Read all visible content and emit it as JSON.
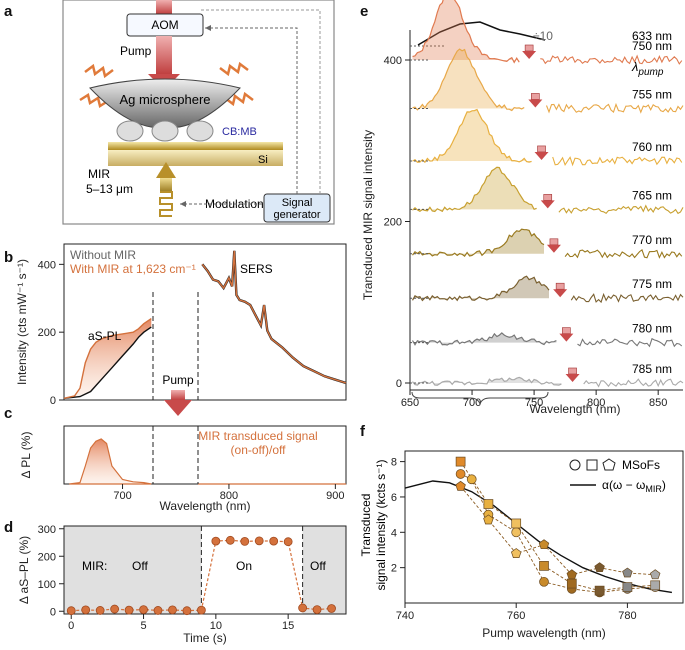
{
  "panels": {
    "a": "a",
    "b": "b",
    "c": "c",
    "d": "d",
    "e": "e",
    "f": "f"
  },
  "panel_a": {
    "aom": "AOM",
    "pump": "Pump",
    "sphere": "Ag microsphere",
    "molecule": "CB:MB",
    "substrate": "Si",
    "mir_line1": "MIR",
    "mir_line2": "5–13 μm",
    "modulation": "Modulation",
    "signal_gen_line1": "Signal",
    "signal_gen_line2": "generator",
    "colors": {
      "pump_arrow": "#c84a4a",
      "mir_arrow": "#b8902a",
      "molecule_label": "#2a2aa0",
      "panel_border": "#888888"
    }
  },
  "chart_data": [
    {
      "panel": "b",
      "type": "line",
      "xlabel": "Wavelength (nm)",
      "ylabel": "Intensity (cts mW⁻¹ s⁻¹)",
      "xlim": [
        645,
        910
      ],
      "ylim": [
        0,
        460
      ],
      "xticks": [
        700,
        800,
        900
      ],
      "yticks": [
        0,
        200,
        400
      ],
      "legend": [
        "Without MIR",
        "With MIR at 1,623 cm⁻¹"
      ],
      "annotations": [
        "aS-PL",
        "SERS",
        "Pump"
      ],
      "series": [
        {
          "name": "Without MIR",
          "color": "#111111",
          "x": [
            645,
            660,
            670,
            680,
            690,
            700,
            710,
            715,
            720,
            727
          ],
          "y": [
            5,
            10,
            25,
            60,
            95,
            130,
            165,
            185,
            200,
            215
          ]
        },
        {
          "name": "With MIR at 1,623 cm⁻¹",
          "color": "#d4713c",
          "x": [
            645,
            655,
            660,
            665,
            670,
            675,
            680,
            690,
            700,
            710,
            715,
            720,
            727
          ],
          "y": [
            5,
            12,
            35,
            110,
            150,
            170,
            180,
            190,
            195,
            200,
            210,
            225,
            240
          ]
        },
        {
          "name": "SERS",
          "color": "#d4713c",
          "x": [
            775,
            780,
            785,
            790,
            795,
            800,
            803,
            805,
            807,
            810,
            815,
            820,
            825,
            830,
            833,
            836,
            840,
            850,
            860,
            870,
            880,
            890,
            900,
            910
          ],
          "y": [
            400,
            380,
            355,
            350,
            330,
            360,
            335,
            440,
            310,
            295,
            290,
            280,
            250,
            220,
            280,
            205,
            180,
            155,
            125,
            100,
            85,
            70,
            60,
            50
          ]
        }
      ]
    },
    {
      "panel": "c",
      "type": "area",
      "xlabel": "Wavelength (nm)",
      "ylabel": "Δ PL (%)",
      "xlim": [
        645,
        910
      ],
      "xticks": [
        700,
        800,
        900
      ],
      "annotation_line1": "MIR transduced signal",
      "annotation_line2": "(on-off)/off",
      "x": [
        650,
        660,
        665,
        670,
        675,
        680,
        685,
        690,
        700,
        710,
        720,
        727
      ],
      "y": [
        0,
        3,
        40,
        80,
        95,
        100,
        90,
        40,
        10,
        5,
        3,
        0
      ]
    },
    {
      "panel": "d",
      "type": "line",
      "xlabel": "Time (s)",
      "ylabel": "Δ aS–PL (%)",
      "xlim": [
        -0.5,
        19
      ],
      "ylim": [
        -10,
        310
      ],
      "xticks": [
        0,
        5,
        10,
        15
      ],
      "yticks": [
        0,
        100,
        200,
        300
      ],
      "labels": {
        "mir": "MIR:",
        "off1": "Off",
        "on": "On",
        "off2": "Off"
      },
      "off_intervals": [
        [
          -0.5,
          9
        ],
        [
          16,
          19
        ]
      ],
      "color": "#d4713c",
      "x": [
        0,
        1,
        2,
        3,
        4,
        5,
        6,
        7,
        8,
        9,
        10,
        11,
        12,
        13,
        14,
        15,
        16,
        17,
        18
      ],
      "y": [
        2,
        5,
        3,
        8,
        4,
        6,
        3,
        5,
        2,
        4,
        255,
        258,
        254,
        256,
        255,
        253,
        12,
        6,
        10
      ]
    },
    {
      "panel": "e",
      "type": "line",
      "xlabel": "Wavelength (nm)",
      "ylabel": "Transduced MIR signal intensity",
      "xlim": [
        650,
        870
      ],
      "xticks": [
        650,
        700,
        750,
        800,
        850
      ],
      "yticks": [
        0,
        200,
        400
      ],
      "legend_title": "λ",
      "legend_title_sub": "pump",
      "reference": {
        "label": "633 nm",
        "scale_note": "÷10"
      },
      "series": [
        {
          "name": "750 nm",
          "pump": 750,
          "offset": 400,
          "peak_x": 680,
          "peak_y": 85,
          "color": "#e07a50"
        },
        {
          "name": "755 nm",
          "pump": 755,
          "offset": 340,
          "peak_x": 690,
          "peak_y": 75,
          "color": "#e8a848"
        },
        {
          "name": "760 nm",
          "pump": 760,
          "offset": 275,
          "peak_x": 700,
          "peak_y": 65,
          "color": "#e8b040"
        },
        {
          "name": "765 nm",
          "pump": 765,
          "offset": 215,
          "peak_x": 720,
          "peak_y": 50,
          "color": "#c8a030"
        },
        {
          "name": "770 nm",
          "pump": 770,
          "offset": 160,
          "peak_x": 740,
          "peak_y": 30,
          "color": "#9a7a20"
        },
        {
          "name": "775 nm",
          "pump": 775,
          "offset": 105,
          "peak_x": 745,
          "peak_y": 25,
          "color": "#7a6030"
        },
        {
          "name": "780 nm",
          "pump": 780,
          "offset": 50,
          "peak_x": 725,
          "peak_y": 10,
          "color": "#777777"
        },
        {
          "name": "785 nm",
          "pump": 785,
          "offset": 0,
          "peak_x": 730,
          "peak_y": 5,
          "color": "#aaaaaa"
        }
      ]
    },
    {
      "panel": "f",
      "type": "scatter",
      "xlabel": "Pump wavelength (nm)",
      "ylabel_line1": "Transduced",
      "ylabel_line2": "signal intensity (kcts s⁻¹)",
      "xlim": [
        740,
        790
      ],
      "ylim": [
        0,
        8.6
      ],
      "xticks": [
        740,
        760,
        780
      ],
      "yticks": [
        2,
        4,
        6,
        8
      ],
      "legend": {
        "markers": "MSoFs",
        "curve": "α(ω − ω",
        "curve_sub": "MIR",
        "curve_end": ")"
      },
      "curve": {
        "x": [
          740,
          745,
          748,
          752,
          756,
          760,
          764,
          768,
          772,
          776,
          780,
          784,
          788
        ],
        "y": [
          6.5,
          6.9,
          6.8,
          6.3,
          5.5,
          4.5,
          3.5,
          2.7,
          2.0,
          1.5,
          1.1,
          0.8,
          0.6
        ]
      },
      "series": [
        {
          "name": "circle",
          "x": [
            750,
            752,
            755,
            760,
            765,
            770,
            775,
            780,
            785
          ],
          "y": [
            7.3,
            7.0,
            5.0,
            4.0,
            1.2,
            0.8,
            0.6,
            0.8,
            0.9
          ]
        },
        {
          "name": "square",
          "x": [
            750,
            755,
            760,
            765,
            770,
            775,
            780,
            785
          ],
          "y": [
            8.0,
            5.6,
            4.5,
            2.1,
            1.1,
            0.7,
            0.9,
            1.0
          ]
        },
        {
          "name": "pentagon",
          "x": [
            750,
            755,
            760,
            765,
            770,
            775,
            780,
            785
          ],
          "y": [
            6.6,
            4.7,
            2.8,
            3.3,
            1.6,
            2.0,
            1.7,
            1.6
          ]
        }
      ],
      "colors": [
        "#e08a2a",
        "#e8b040",
        "#f0c060",
        "#c88a2a",
        "#a06a20",
        "#7a5a30",
        "#888888",
        "#aaaaaa",
        "#cccccc"
      ]
    }
  ]
}
